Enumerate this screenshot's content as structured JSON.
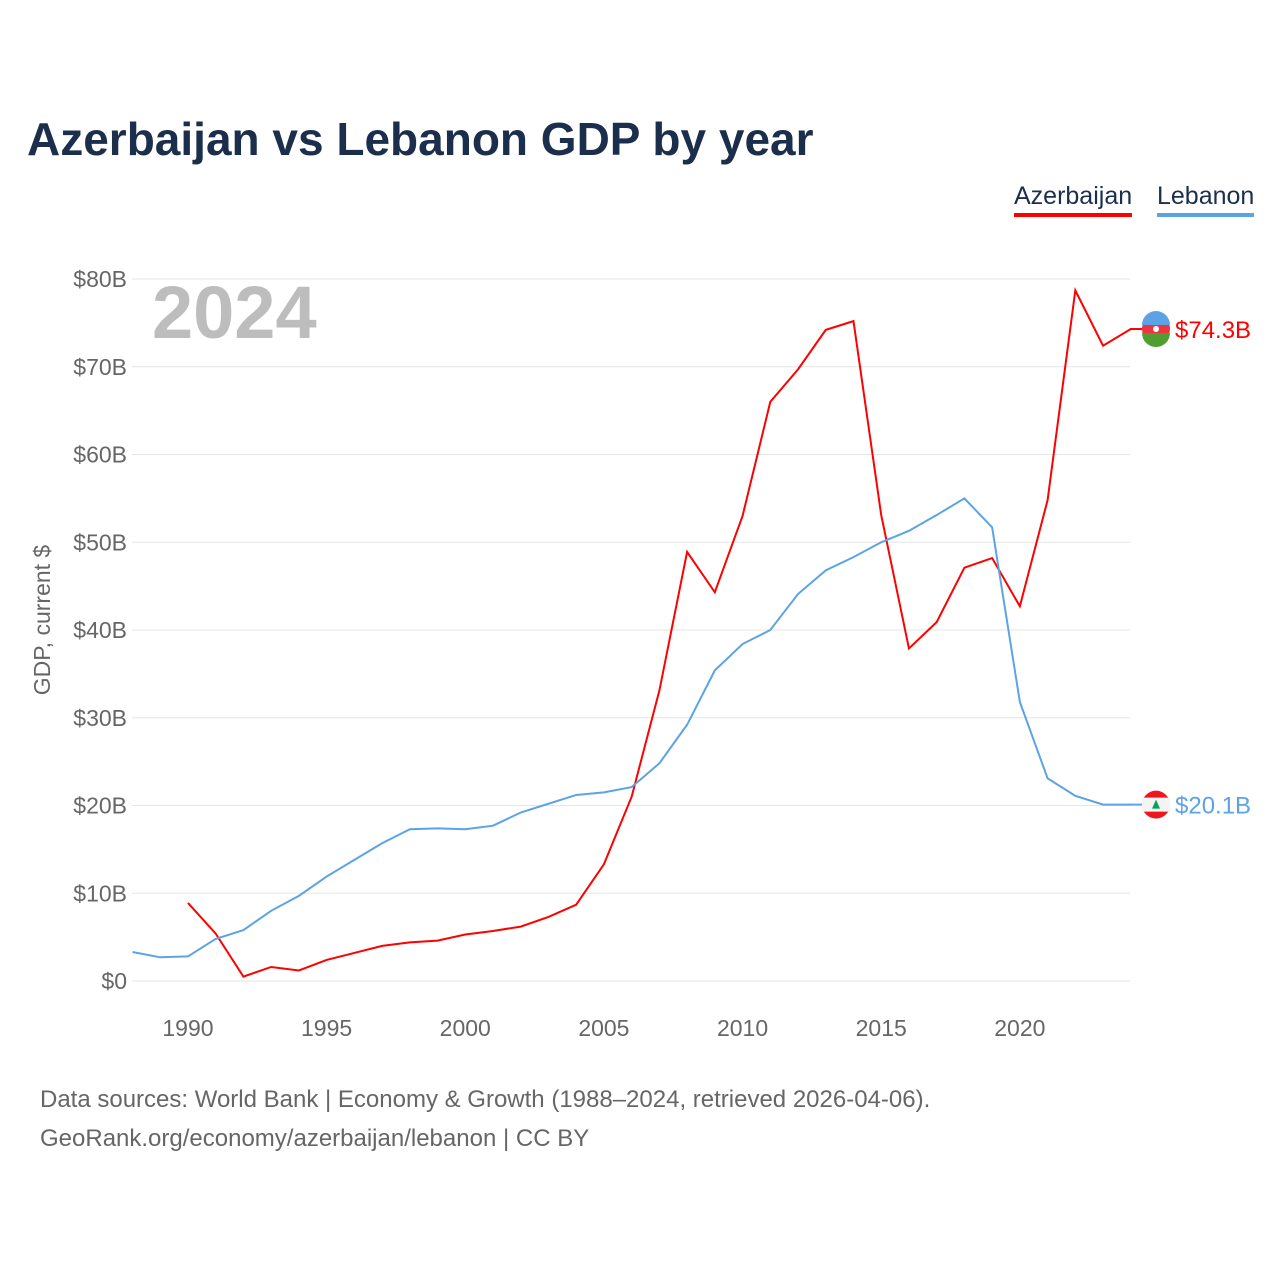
{
  "title": "Azerbaijan vs Lebanon GDP by year",
  "year_watermark": "2024",
  "footer": {
    "line1": "Data sources: World Bank | Economy & Growth (1988–2024, retrieved 2026-04-06).",
    "line2": "GeoRank.org/economy/azerbaijan/lebanon | CC BY"
  },
  "chart_data": {
    "type": "line",
    "title": "Azerbaijan vs Lebanon GDP by year",
    "xlabel": "",
    "ylabel": "GDP, current $",
    "xlim": [
      1988,
      2024
    ],
    "ylim": [
      0,
      80
    ],
    "grid": true,
    "legend_placement": "top-right",
    "x_ticks": [
      "1990",
      "1995",
      "2000",
      "2005",
      "2010",
      "2015",
      "2020"
    ],
    "y_ticks": [
      "$0",
      "$10B",
      "$20B",
      "$30B",
      "$40B",
      "$50B",
      "$60B",
      "$70B",
      "$80B"
    ],
    "series": [
      {
        "name": "Azerbaijan",
        "color": "#ff0000",
        "end_label": "$74.3B",
        "x": [
          1990,
          1991,
          1992,
          1993,
          1994,
          1995,
          1996,
          1997,
          1998,
          1999,
          2000,
          2001,
          2002,
          2003,
          2004,
          2005,
          2006,
          2007,
          2008,
          2009,
          2010,
          2011,
          2012,
          2013,
          2014,
          2015,
          2016,
          2017,
          2018,
          2019,
          2020,
          2021,
          2022,
          2023,
          2024
        ],
        "values": [
          8.9,
          5.4,
          0.5,
          1.6,
          1.2,
          2.4,
          3.2,
          4.0,
          4.4,
          4.6,
          5.3,
          5.7,
          6.2,
          7.3,
          8.7,
          13.3,
          21.0,
          33.1,
          48.9,
          44.3,
          53.0,
          66.0,
          69.7,
          74.2,
          75.2,
          53.1,
          37.9,
          40.9,
          47.1,
          48.2,
          42.7,
          54.8,
          78.7,
          72.4,
          74.3
        ]
      },
      {
        "name": "Lebanon",
        "color": "#5ca3e6",
        "end_label": "$20.1B",
        "x": [
          1988,
          1989,
          1990,
          1991,
          1992,
          1993,
          1994,
          1995,
          1996,
          1997,
          1998,
          1999,
          2000,
          2001,
          2002,
          2003,
          2004,
          2005,
          2006,
          2007,
          2008,
          2009,
          2010,
          2011,
          2012,
          2013,
          2014,
          2015,
          2016,
          2017,
          2018,
          2019,
          2020,
          2021,
          2022,
          2023,
          2024
        ],
        "values": [
          3.3,
          2.7,
          2.8,
          4.8,
          5.8,
          8.0,
          9.7,
          11.9,
          13.8,
          15.7,
          17.3,
          17.4,
          17.3,
          17.7,
          19.2,
          20.2,
          21.2,
          21.5,
          22.1,
          24.8,
          29.2,
          35.4,
          38.4,
          40.0,
          44.1,
          46.8,
          48.3,
          50.0,
          51.3,
          53.1,
          55.0,
          51.7,
          31.8,
          23.1,
          21.1,
          20.1,
          20.1
        ]
      }
    ]
  }
}
